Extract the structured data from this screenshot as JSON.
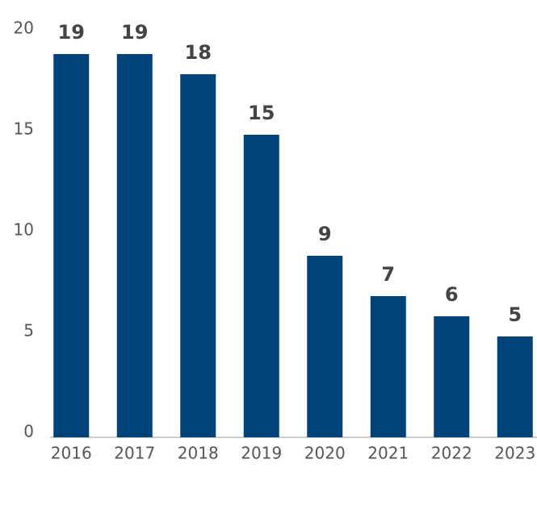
{
  "chart_data": {
    "type": "bar",
    "categories": [
      "2016",
      "2017",
      "2018",
      "2019",
      "2020",
      "2021",
      "2022",
      "2023"
    ],
    "values": [
      19,
      19,
      18,
      15,
      9,
      7,
      6,
      5
    ],
    "color": "#00427a",
    "ylim": [
      0,
      20
    ],
    "yticks": [
      0,
      5,
      10,
      15,
      20
    ],
    "grid": false
  }
}
